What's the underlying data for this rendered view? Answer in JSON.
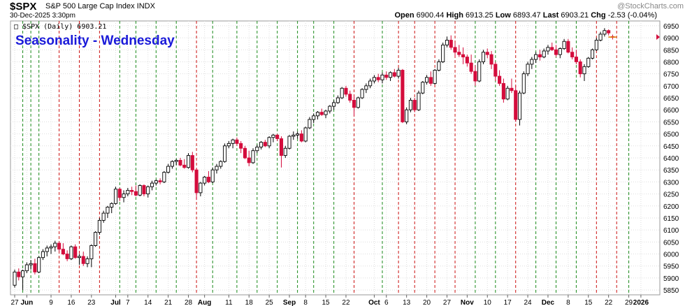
{
  "header": {
    "symbol": "$SPX",
    "name": "S&P 500 Large Cap Index INDX",
    "brand": "@StockCharts.com",
    "datetime": "30-Dec-2025 3:30pm",
    "open_label": "Open",
    "open": "6900.44",
    "high_label": "High",
    "high": "6913.25",
    "low_label": "Low",
    "low": "6893.47",
    "last_label": "Last",
    "last": "6903.21",
    "chg_label": "Chg",
    "chg": "-2.53 (-0.04%)"
  },
  "colors": {
    "up": "#000000",
    "down": "#d40c3c",
    "green_line": "#1a8a1a",
    "red_line": "#cc1111",
    "title": "#1a1ad9"
  },
  "chart_data": {
    "type": "candlestick",
    "title": "Seasonality - Wednesday",
    "legend": "$SPX (Daily) 6903.21",
    "ylim": [
      5830,
      6970
    ],
    "y_ticks": [
      5850,
      5900,
      5950,
      6000,
      6050,
      6100,
      6150,
      6200,
      6250,
      6300,
      6350,
      6400,
      6450,
      6500,
      6550,
      6600,
      6650,
      6700,
      6750,
      6800,
      6850,
      6900,
      6950
    ],
    "x_ticks": [
      {
        "label": "27",
        "i": 0
      },
      {
        "label": "Jun",
        "i": 3
      },
      {
        "label": "9",
        "i": 9
      },
      {
        "label": "16",
        "i": 14
      },
      {
        "label": "23",
        "i": 19
      },
      {
        "label": "Jul",
        "i": 25
      },
      {
        "label": "7",
        "i": 28
      },
      {
        "label": "14",
        "i": 33
      },
      {
        "label": "21",
        "i": 38
      },
      {
        "label": "28",
        "i": 43
      },
      {
        "label": "Aug",
        "i": 47
      },
      {
        "label": "11",
        "i": 53
      },
      {
        "label": "18",
        "i": 58
      },
      {
        "label": "25",
        "i": 63
      },
      {
        "label": "Sep",
        "i": 68
      },
      {
        "label": "8",
        "i": 72
      },
      {
        "label": "15",
        "i": 77
      },
      {
        "label": "22",
        "i": 82
      },
      {
        "label": "Oct",
        "i": 89
      },
      {
        "label": "6",
        "i": 92
      },
      {
        "label": "13",
        "i": 97
      },
      {
        "label": "20",
        "i": 102
      },
      {
        "label": "27",
        "i": 107
      },
      {
        "label": "Nov",
        "i": 112
      },
      {
        "label": "10",
        "i": 117
      },
      {
        "label": "17",
        "i": 122
      },
      {
        "label": "24",
        "i": 127
      },
      {
        "label": "Dec",
        "i": 132
      },
      {
        "label": "8",
        "i": 137
      },
      {
        "label": "15",
        "i": 142
      },
      {
        "label": "22",
        "i": 147
      },
      {
        "label": "29",
        "i": 152
      },
      {
        "label": "2026",
        "i": 155
      }
    ],
    "wednesday_lines": [
      {
        "i": 2,
        "color": "green"
      },
      {
        "i": 4,
        "color": "green"
      },
      {
        "i": 6,
        "color": "green"
      },
      {
        "i": 11,
        "color": "red"
      },
      {
        "i": 16,
        "color": "red"
      },
      {
        "i": 21,
        "color": "red"
      },
      {
        "i": 26,
        "color": "green"
      },
      {
        "i": 30,
        "color": "green"
      },
      {
        "i": 35,
        "color": "green"
      },
      {
        "i": 40,
        "color": "green"
      },
      {
        "i": 45,
        "color": "red"
      },
      {
        "i": 49,
        "color": "green"
      },
      {
        "i": 55,
        "color": "green"
      },
      {
        "i": 60,
        "color": "green"
      },
      {
        "i": 65,
        "color": "green"
      },
      {
        "i": 70,
        "color": "green"
      },
      {
        "i": 74,
        "color": "green"
      },
      {
        "i": 79,
        "color": "green"
      },
      {
        "i": 84,
        "color": "red"
      },
      {
        "i": 91,
        "color": "green"
      },
      {
        "i": 95,
        "color": "red"
      },
      {
        "i": 99,
        "color": "red"
      },
      {
        "i": 104,
        "color": "red"
      },
      {
        "i": 109,
        "color": "red"
      },
      {
        "i": 114,
        "color": "green"
      },
      {
        "i": 119,
        "color": "green"
      },
      {
        "i": 124,
        "color": "red"
      },
      {
        "i": 129,
        "color": "green"
      },
      {
        "i": 134,
        "color": "green"
      },
      {
        "i": 139,
        "color": "green"
      },
      {
        "i": 144,
        "color": "red"
      },
      {
        "i": 149,
        "color": "red"
      },
      {
        "i": 152,
        "color": "green"
      }
    ],
    "candles": [
      [
        5870,
        5935,
        5860,
        5925
      ],
      [
        5925,
        5940,
        5890,
        5905
      ],
      [
        5905,
        5935,
        5850,
        5930
      ],
      [
        5930,
        5965,
        5920,
        5955
      ],
      [
        5955,
        5975,
        5935,
        5960
      ],
      [
        5960,
        5980,
        5915,
        5925
      ],
      [
        5925,
        5990,
        5920,
        5985
      ],
      [
        5985,
        6020,
        5975,
        6010
      ],
      [
        6010,
        6035,
        5990,
        6025
      ],
      [
        6025,
        6040,
        6000,
        6030
      ],
      [
        6030,
        6055,
        6010,
        6045
      ],
      [
        6045,
        6050,
        6010,
        6020
      ],
      [
        6020,
        6045,
        5995,
        6000
      ],
      [
        6000,
        6015,
        5970,
        5980
      ],
      [
        5980,
        6035,
        5975,
        6030
      ],
      [
        6030,
        6040,
        5980,
        5985
      ],
      [
        5985,
        6000,
        5955,
        5990
      ],
      [
        5990,
        6010,
        5950,
        5960
      ],
      [
        5960,
        5990,
        5945,
        5980
      ],
      [
        5980,
        6040,
        5945,
        6035
      ],
      [
        6035,
        6095,
        6030,
        6090
      ],
      [
        6090,
        6150,
        6080,
        6140
      ],
      [
        6140,
        6180,
        6130,
        6170
      ],
      [
        6170,
        6200,
        6150,
        6195
      ],
      [
        6195,
        6215,
        6170,
        6210
      ],
      [
        6210,
        6280,
        6205,
        6270
      ],
      [
        6270,
        6275,
        6220,
        6235
      ],
      [
        6235,
        6265,
        6215,
        6250
      ],
      [
        6250,
        6275,
        6240,
        6265
      ],
      [
        6265,
        6280,
        6245,
        6260
      ],
      [
        6260,
        6285,
        6240,
        6245
      ],
      [
        6245,
        6290,
        6240,
        6285
      ],
      [
        6285,
        6290,
        6240,
        6250
      ],
      [
        6250,
        6285,
        6235,
        6280
      ],
      [
        6280,
        6305,
        6265,
        6295
      ],
      [
        6295,
        6310,
        6285,
        6305
      ],
      [
        6305,
        6315,
        6290,
        6300
      ],
      [
        6300,
        6345,
        6295,
        6340
      ],
      [
        6340,
        6375,
        6335,
        6365
      ],
      [
        6365,
        6390,
        6355,
        6385
      ],
      [
        6385,
        6395,
        6370,
        6390
      ],
      [
        6390,
        6400,
        6365,
        6370
      ],
      [
        6370,
        6395,
        6355,
        6360
      ],
      [
        6360,
        6420,
        6355,
        6410
      ],
      [
        6410,
        6425,
        6340,
        6350
      ],
      [
        6350,
        6355,
        6225,
        6255
      ],
      [
        6255,
        6300,
        6240,
        6295
      ],
      [
        6295,
        6325,
        6285,
        6320
      ],
      [
        6320,
        6345,
        6295,
        6300
      ],
      [
        6300,
        6360,
        6295,
        6350
      ],
      [
        6350,
        6375,
        6335,
        6365
      ],
      [
        6365,
        6390,
        6355,
        6385
      ],
      [
        6385,
        6460,
        6380,
        6450
      ],
      [
        6450,
        6470,
        6440,
        6460
      ],
      [
        6460,
        6480,
        6440,
        6475
      ],
      [
        6475,
        6485,
        6450,
        6460
      ],
      [
        6460,
        6470,
        6420,
        6440
      ],
      [
        6440,
        6450,
        6395,
        6400
      ],
      [
        6400,
        6430,
        6365,
        6380
      ],
      [
        6380,
        6440,
        6375,
        6430
      ],
      [
        6430,
        6455,
        6420,
        6445
      ],
      [
        6445,
        6470,
        6435,
        6465
      ],
      [
        6465,
        6475,
        6445,
        6450
      ],
      [
        6450,
        6490,
        6440,
        6485
      ],
      [
        6485,
        6500,
        6465,
        6495
      ],
      [
        6495,
        6500,
        6470,
        6480
      ],
      [
        6480,
        6490,
        6360,
        6410
      ],
      [
        6410,
        6450,
        6400,
        6440
      ],
      [
        6440,
        6495,
        6435,
        6490
      ],
      [
        6490,
        6510,
        6475,
        6495
      ],
      [
        6495,
        6510,
        6480,
        6500
      ],
      [
        6500,
        6515,
        6465,
        6470
      ],
      [
        6470,
        6530,
        6465,
        6525
      ],
      [
        6525,
        6570,
        6520,
        6560
      ],
      [
        6560,
        6585,
        6545,
        6575
      ],
      [
        6575,
        6595,
        6560,
        6590
      ],
      [
        6590,
        6605,
        6575,
        6580
      ],
      [
        6580,
        6600,
        6565,
        6595
      ],
      [
        6595,
        6620,
        6585,
        6615
      ],
      [
        6615,
        6640,
        6600,
        6630
      ],
      [
        6630,
        6660,
        6625,
        6650
      ],
      [
        6650,
        6695,
        6645,
        6690
      ],
      [
        6690,
        6700,
        6655,
        6665
      ],
      [
        6665,
        6680,
        6630,
        6640
      ],
      [
        6640,
        6660,
        6575,
        6610
      ],
      [
        6610,
        6655,
        6605,
        6650
      ],
      [
        6650,
        6690,
        6645,
        6685
      ],
      [
        6685,
        6710,
        6670,
        6700
      ],
      [
        6700,
        6730,
        6690,
        6720
      ],
      [
        6720,
        6745,
        6710,
        6735
      ],
      [
        6735,
        6750,
        6715,
        6725
      ],
      [
        6725,
        6755,
        6710,
        6745
      ],
      [
        6745,
        6760,
        6725,
        6735
      ],
      [
        6735,
        6760,
        6720,
        6755
      ],
      [
        6755,
        6770,
        6735,
        6740
      ],
      [
        6740,
        6775,
        6730,
        6765
      ],
      [
        6765,
        6770,
        6545,
        6550
      ],
      [
        6550,
        6610,
        6540,
        6600
      ],
      [
        6600,
        6650,
        6590,
        6640
      ],
      [
        6640,
        6650,
        6590,
        6600
      ],
      [
        6600,
        6680,
        6595,
        6670
      ],
      [
        6670,
        6720,
        6665,
        6715
      ],
      [
        6715,
        6745,
        6705,
        6735
      ],
      [
        6735,
        6760,
        6700,
        6710
      ],
      [
        6710,
        6770,
        6705,
        6765
      ],
      [
        6765,
        6810,
        6760,
        6800
      ],
      [
        6800,
        6880,
        6795,
        6870
      ],
      [
        6870,
        6905,
        6860,
        6890
      ],
      [
        6890,
        6910,
        6850,
        6860
      ],
      [
        6860,
        6880,
        6820,
        6840
      ],
      [
        6840,
        6870,
        6820,
        6830
      ],
      [
        6830,
        6860,
        6790,
        6820
      ],
      [
        6820,
        6830,
        6780,
        6795
      ],
      [
        6795,
        6830,
        6750,
        6760
      ],
      [
        6760,
        6785,
        6700,
        6720
      ],
      [
        6720,
        6810,
        6715,
        6800
      ],
      [
        6800,
        6850,
        6790,
        6840
      ],
      [
        6840,
        6855,
        6815,
        6830
      ],
      [
        6830,
        6845,
        6770,
        6790
      ],
      [
        6790,
        6800,
        6720,
        6740
      ],
      [
        6740,
        6765,
        6700,
        6710
      ],
      [
        6710,
        6730,
        6630,
        6645
      ],
      [
        6645,
        6700,
        6640,
        6690
      ],
      [
        6690,
        6730,
        6670,
        6680
      ],
      [
        6680,
        6700,
        6550,
        6560
      ],
      [
        6560,
        6680,
        6535,
        6670
      ],
      [
        6670,
        6760,
        6665,
        6750
      ],
      [
        6750,
        6800,
        6740,
        6790
      ],
      [
        6790,
        6820,
        6770,
        6810
      ],
      [
        6810,
        6840,
        6795,
        6830
      ],
      [
        6830,
        6850,
        6805,
        6820
      ],
      [
        6820,
        6855,
        6815,
        6845
      ],
      [
        6845,
        6870,
        6830,
        6860
      ],
      [
        6860,
        6880,
        6845,
        6850
      ],
      [
        6850,
        6870,
        6820,
        6830
      ],
      [
        6830,
        6860,
        6815,
        6855
      ],
      [
        6855,
        6895,
        6850,
        6885
      ],
      [
        6885,
        6895,
        6835,
        6840
      ],
      [
        6840,
        6860,
        6810,
        6820
      ],
      [
        6820,
        6850,
        6790,
        6800
      ],
      [
        6800,
        6810,
        6735,
        6750
      ],
      [
        6750,
        6790,
        6720,
        6780
      ],
      [
        6780,
        6820,
        6775,
        6815
      ],
      [
        6815,
        6855,
        6810,
        6850
      ],
      [
        6850,
        6900,
        6845,
        6890
      ],
      [
        6890,
        6925,
        6885,
        6915
      ],
      [
        6915,
        6940,
        6905,
        6930
      ],
      [
        6930,
        6935,
        6910,
        6920
      ],
      [
        6905,
        6913,
        6893,
        6903
      ]
    ]
  }
}
